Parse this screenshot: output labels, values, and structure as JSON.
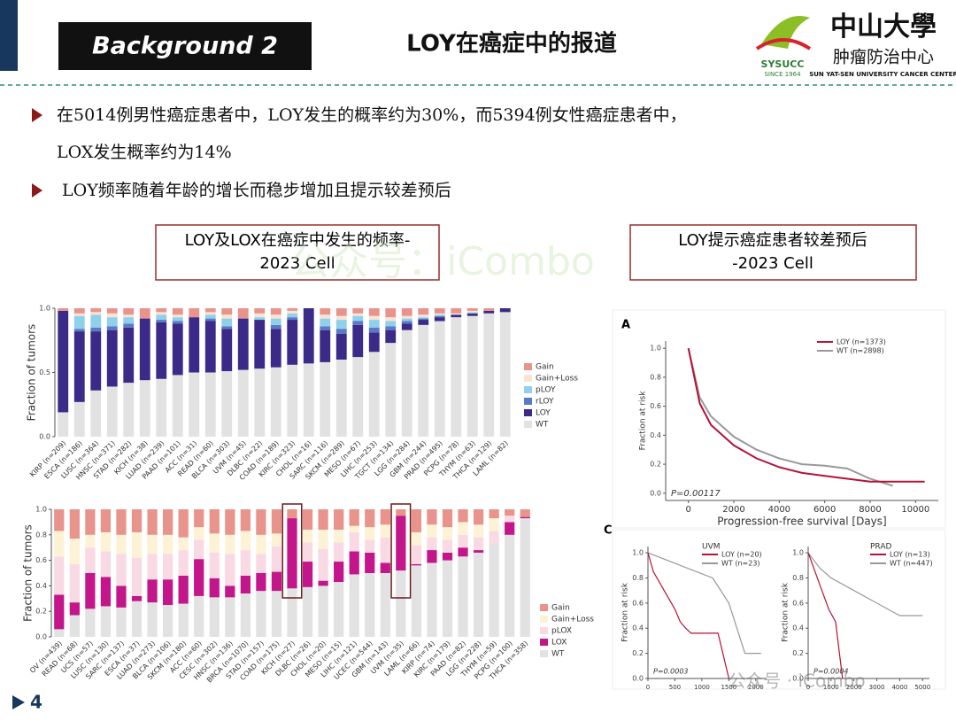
{
  "header": {
    "badge": "Background 2",
    "title": "LOY在癌症中的报道",
    "logo_mark": "SYSUCC",
    "logo_since": "SINCE 1964",
    "logo_name": "中山大學",
    "logo_sub": "肿瘤防治中心",
    "logo_en": "SUN YAT-SEN UNIVERSITY CANCER CENTER"
  },
  "bullets": [
    [
      "在5014例男性癌症患者中，LOY发生的概率约为30%，而5394例女性癌症患者中，",
      "LOX发生概率约为14%"
    ],
    [
      "LOY频率随着年龄的增长而稳步增加且提示较差预后"
    ]
  ],
  "boxes": [
    [
      "LOY及LOX在癌症中发生的频率-",
      "2023 Cell"
    ],
    [
      "LOY提示癌症患者较差预后",
      "-2023 Cell"
    ]
  ],
  "watermarks": [
    "公众号：iCombo",
    "公众号 · iCombo"
  ],
  "page_number": "4",
  "chart_data": [
    {
      "type": "bar",
      "stacked": true,
      "ylabel": "Fraction of tumors",
      "categories": [
        "KIRP (n=209)",
        "ESCA (n=186)",
        "LUSC (n=364)",
        "HNSC (n=371)",
        "STAD (n=282)",
        "KICH (n=38)",
        "LUAD (n=239)",
        "PAAD (n=101)",
        "ACC (n=31)",
        "READ (n=60)",
        "BLCA (n=303)",
        "UVM (n=45)",
        "DLBC (n=22)",
        "COAD (n=189)",
        "KIRC (n=323)",
        "CHOL (n=16)",
        "SARC (n=116)",
        "SKCM (n=289)",
        "MESO (n=67)",
        "LIHC (n=253)",
        "TGCT (n=134)",
        "LGG (n=284)",
        "GBM (n=244)",
        "PRAD (n=495)",
        "PCPG (n=78)",
        "THYM (n=63)",
        "THCA (n=129)",
        "LAML (n=82)"
      ],
      "series": [
        {
          "name": "WT",
          "color": "#e2e2e2",
          "values": [
            0.19,
            0.27,
            0.36,
            0.39,
            0.42,
            0.44,
            0.45,
            0.48,
            0.5,
            0.5,
            0.51,
            0.52,
            0.53,
            0.54,
            0.56,
            0.57,
            0.58,
            0.6,
            0.62,
            0.66,
            0.73,
            0.83,
            0.87,
            0.9,
            0.93,
            0.94,
            0.96,
            0.97
          ]
        },
        {
          "name": "LOY",
          "color": "#3b2a87",
          "values": [
            0.79,
            0.55,
            0.46,
            0.44,
            0.43,
            0.48,
            0.44,
            0.4,
            0.43,
            0.4,
            0.33,
            0.4,
            0.38,
            0.3,
            0.35,
            0.43,
            0.25,
            0.2,
            0.25,
            0.15,
            0.1,
            0.05,
            0.04,
            0.03,
            0.02,
            0.02,
            0.02,
            0.03
          ]
        },
        {
          "name": "rLOY",
          "color": "#5a7ac8",
          "values": [
            0,
            0.02,
            0.03,
            0.03,
            0.03,
            0,
            0.02,
            0.02,
            0,
            0.02,
            0.02,
            0,
            0,
            0.03,
            0.02,
            0,
            0.03,
            0.04,
            0.03,
            0.04,
            0.03,
            0.02,
            0.01,
            0.01,
            0,
            0,
            0,
            0
          ]
        },
        {
          "name": "pLOY",
          "color": "#8fd0ea",
          "values": [
            0,
            0.1,
            0.1,
            0.07,
            0.05,
            0,
            0.04,
            0.03,
            0,
            0.03,
            0.06,
            0,
            0.02,
            0.05,
            0.03,
            0,
            0.06,
            0.07,
            0.04,
            0.06,
            0.04,
            0.02,
            0.01,
            0.01,
            0,
            0.01,
            0,
            0
          ]
        },
        {
          "name": "Gain+Loss",
          "color": "#f8e4d4",
          "values": [
            0,
            0.02,
            0.02,
            0.03,
            0.02,
            0,
            0.02,
            0.02,
            0,
            0.02,
            0.03,
            0,
            0.03,
            0.03,
            0.02,
            0,
            0.03,
            0.03,
            0.02,
            0.03,
            0.03,
            0.02,
            0.02,
            0.01,
            0.01,
            0.01,
            0,
            0
          ]
        },
        {
          "name": "Gain",
          "color": "#e8938c",
          "values": [
            0.02,
            0.04,
            0.03,
            0.04,
            0.05,
            0.08,
            0.03,
            0.05,
            0.07,
            0.03,
            0.05,
            0.08,
            0.04,
            0.05,
            0.02,
            0,
            0.05,
            0.06,
            0.04,
            0.06,
            0.07,
            0.06,
            0.05,
            0.04,
            0.04,
            0.02,
            0.02,
            0
          ]
        }
      ],
      "ylim": [
        0,
        1
      ],
      "yticks": [
        {
          "value": 0,
          "label": "0.0"
        },
        {
          "value": 0.5,
          "label": "0.5"
        },
        {
          "value": 1,
          "label": "1.0"
        }
      ]
    },
    {
      "type": "bar",
      "stacked": true,
      "ylabel": "Fraction of tumors",
      "categories": [
        "OV (n=439)",
        "READ (n=68)",
        "UCS (n=57)",
        "LUSC (n=130)",
        "SARC (n=137)",
        "ESCA (n=37)",
        "LUAD (n=273)",
        "BLCA (n=106)",
        "SKCM (n=180)",
        "ACC (n=60)",
        "CESC (n=302)",
        "HNSC (n=136)",
        "BRCA (n=1070)",
        "STAD (n=157)",
        "COAD (n=175)",
        "KICH (n=27)",
        "DLBC (n=26)",
        "CHOL (n=20)",
        "MESO (n=15)",
        "LIHC (n=121)",
        "UCEC (n=544)",
        "GBM (n=143)",
        "UVM (n=35)",
        "LAML (n=66)",
        "KIRP (n=74)",
        "KIRC (n=179)",
        "PAAD (n=82)",
        "LGG (n=228)",
        "THYM (n=59)",
        "PCPG (n=100)",
        "THCA (n=358)"
      ],
      "series": [
        {
          "name": "WT",
          "color": "#e2e2e2",
          "values": [
            0.06,
            0.17,
            0.22,
            0.24,
            0.23,
            0.28,
            0.27,
            0.25,
            0.26,
            0.32,
            0.31,
            0.31,
            0.34,
            0.36,
            0.36,
            0.38,
            0.39,
            0.4,
            0.43,
            0.49,
            0.5,
            0.5,
            0.52,
            0.56,
            0.58,
            0.6,
            0.63,
            0.66,
            0.73,
            0.8,
            0.93
          ]
        },
        {
          "name": "LOX",
          "color": "#c2168a",
          "values": [
            0.27,
            0.1,
            0.28,
            0.23,
            0.17,
            0.04,
            0.18,
            0.2,
            0.22,
            0.29,
            0.15,
            0.09,
            0.14,
            0.14,
            0.15,
            0.55,
            0.2,
            0.04,
            0.16,
            0.18,
            0.16,
            0.08,
            0.43,
            0.01,
            0.1,
            0.06,
            0.07,
            0.02,
            0,
            0.1,
            0.01
          ]
        },
        {
          "name": "pLOX",
          "color": "#f9d9e3",
          "values": [
            0.3,
            0.3,
            0.2,
            0.2,
            0.25,
            0.3,
            0.2,
            0.2,
            0.2,
            0.15,
            0.2,
            0.25,
            0.2,
            0.15,
            0.2,
            0,
            0.15,
            0.25,
            0.15,
            0.15,
            0.1,
            0.2,
            0,
            0.15,
            0.1,
            0.1,
            0.1,
            0.1,
            0.1,
            0.05,
            0
          ]
        },
        {
          "name": "Gain+Loss",
          "color": "#fdf2d6",
          "values": [
            0.2,
            0.2,
            0.1,
            0.15,
            0.15,
            0.2,
            0.15,
            0.15,
            0.1,
            0.1,
            0.15,
            0.15,
            0.15,
            0.15,
            0.1,
            0,
            0.1,
            0.15,
            0.1,
            0.05,
            0.1,
            0.1,
            0,
            0.1,
            0.1,
            0.1,
            0.1,
            0.1,
            0.1,
            0,
            0
          ]
        },
        {
          "name": "Gain",
          "color": "#e8938c",
          "values": [
            0.17,
            0.23,
            0.2,
            0.18,
            0.2,
            0.18,
            0.2,
            0.2,
            0.22,
            0.14,
            0.19,
            0.2,
            0.17,
            0.2,
            0.19,
            0.07,
            0.16,
            0.16,
            0.16,
            0.13,
            0.14,
            0.12,
            0.05,
            0.18,
            0.12,
            0.14,
            0.1,
            0.12,
            0.07,
            0.05,
            0.06
          ]
        }
      ],
      "ylim": [
        0,
        1
      ],
      "yticks": [
        {
          "value": 0,
          "label": "0.0"
        },
        {
          "value": 0.2,
          "label": "0.2"
        },
        {
          "value": 0.4,
          "label": "0.4"
        },
        {
          "value": 0.6,
          "label": "0.6"
        },
        {
          "value": 0.8,
          "label": "0.8"
        },
        {
          "value": 1,
          "label": "1.0"
        }
      ]
    },
    {
      "type": "line",
      "panel": "A",
      "xlabel": "Progression-free survival [Days]",
      "ylabel": "Fraction at risk",
      "annotation": "P=0.00117",
      "series": [
        {
          "name": "LOY (n=1373)",
          "color": "#b5123a",
          "x": [
            0,
            500,
            1000,
            2000,
            3000,
            4000,
            5000,
            6000,
            7000,
            8000,
            10400
          ],
          "values": [
            1,
            0.62,
            0.47,
            0.33,
            0.24,
            0.18,
            0.14,
            0.12,
            0.1,
            0.08,
            0.08
          ]
        },
        {
          "name": "WT (n=2898)",
          "color": "#999999",
          "x": [
            0,
            500,
            1000,
            2000,
            3000,
            4000,
            5000,
            6000,
            7000,
            8000,
            9000
          ],
          "values": [
            1,
            0.66,
            0.53,
            0.39,
            0.3,
            0.24,
            0.2,
            0.19,
            0.17,
            0.1,
            0.05
          ]
        }
      ],
      "xlim": [
        -1000,
        11000
      ],
      "xticks": [
        0,
        2000,
        4000,
        6000,
        8000,
        10000
      ],
      "ylim": [
        -0.05,
        1.05
      ],
      "yticks": [
        {
          "value": 0,
          "label": "0.0"
        },
        {
          "value": 0.2,
          "label": "0.2"
        },
        {
          "value": 0.4,
          "label": "0.4"
        },
        {
          "value": 0.6,
          "label": "0.6"
        },
        {
          "value": 0.8,
          "label": "0.8"
        },
        {
          "value": 1,
          "label": "1.0"
        }
      ]
    },
    {
      "type": "line",
      "panel": "C",
      "title": "UVM",
      "ylabel": "Fraction at risk",
      "annotation": "P=0.0003",
      "series": [
        {
          "name": "LOY (n=20)",
          "color": "#b5123a",
          "x": [
            0,
            100,
            300,
            500,
            600,
            700,
            800,
            1000,
            1300,
            1500
          ],
          "values": [
            1,
            0.85,
            0.7,
            0.55,
            0.45,
            0.4,
            0.36,
            0.36,
            0.36,
            0
          ]
        },
        {
          "name": "WT (n=23)",
          "color": "#999999",
          "x": [
            0,
            300,
            600,
            900,
            1200,
            1500,
            1800,
            2100
          ],
          "values": [
            1,
            0.95,
            0.9,
            0.85,
            0.8,
            0.6,
            0.2,
            0.2
          ]
        }
      ],
      "xlim": [
        0,
        2200
      ],
      "xticks": [
        0,
        500,
        1000,
        1500,
        2000
      ],
      "ylim": [
        0,
        1.05
      ],
      "yticks": [
        {
          "value": 0,
          "label": "0.0"
        },
        {
          "value": 0.2,
          "label": "0.2"
        },
        {
          "value": 0.4,
          "label": "0.4"
        },
        {
          "value": 0.6,
          "label": "0.6"
        },
        {
          "value": 0.8,
          "label": "0.8"
        },
        {
          "value": 1,
          "label": "1.0"
        }
      ]
    },
    {
      "type": "line",
      "title": "PRAD",
      "ylabel": "Fraction at risk",
      "annotation": "P=0.0004",
      "series": [
        {
          "name": "LOY (n=13)",
          "color": "#b5123a",
          "x": [
            0,
            300,
            600,
            900,
            1200,
            1500
          ],
          "values": [
            1,
            0.85,
            0.7,
            0.55,
            0.45,
            0
          ]
        },
        {
          "name": "WT (n=447)",
          "color": "#999999",
          "x": [
            0,
            500,
            1000,
            2000,
            3000,
            4000,
            5000
          ],
          "values": [
            1,
            0.88,
            0.8,
            0.7,
            0.6,
            0.5,
            0.5
          ]
        }
      ],
      "xlim": [
        0,
        5300
      ],
      "xticks": [
        0,
        1000,
        2000,
        3000,
        4000,
        5000
      ],
      "ylim": [
        0,
        1.05
      ],
      "yticks": [
        {
          "value": 0,
          "label": "0.0"
        },
        {
          "value": 0.2,
          "label": "0.2"
        },
        {
          "value": 0.4,
          "label": "0.4"
        },
        {
          "value": 0.6,
          "label": "0.6"
        },
        {
          "value": 0.8,
          "label": "0.8"
        },
        {
          "value": 1,
          "label": "1.0"
        }
      ]
    }
  ]
}
